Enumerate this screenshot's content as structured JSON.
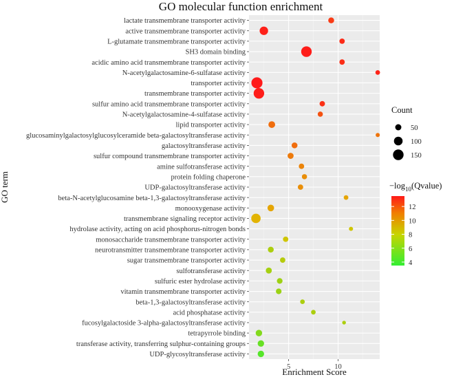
{
  "chart_data": {
    "type": "scatter",
    "title": "GO molecular function enrichment",
    "xlabel": "Enrichment Score",
    "ylabel": "GO term",
    "xlim": [
      1.0,
      14.2
    ],
    "xticks": [
      5,
      10
    ],
    "grid": true,
    "legend_position": "right",
    "size_legend": {
      "title": "Count",
      "values": [
        50,
        100,
        150
      ]
    },
    "color_legend": {
      "title_prefix": "−log",
      "title_sub": "10",
      "title_suffix": "(Qvalue)",
      "range": [
        3.5,
        13.5
      ],
      "ticks": [
        4,
        6,
        8,
        10,
        12
      ],
      "low_color": "#33ee33",
      "mid_color": "#e0c000",
      "high_color": "#ff1a1a"
    },
    "points": [
      {
        "term": "lactate transmembrane transporter activity",
        "x": 9.3,
        "count": 45,
        "q": 12.5
      },
      {
        "term": "active transmembrane transporter activity",
        "x": 2.5,
        "count": 95,
        "q": 13.3
      },
      {
        "term": "L-glutamate transmembrane transporter activity",
        "x": 10.4,
        "count": 38,
        "q": 13.0
      },
      {
        "term": "SH3 domain binding",
        "x": 6.8,
        "count": 150,
        "q": 13.4
      },
      {
        "term": "acidic amino acid transmembrane transporter activity",
        "x": 10.4,
        "count": 38,
        "q": 12.9
      },
      {
        "term": "N-acetylgalactosamine-6-sulfatase activity",
        "x": 14.0,
        "count": 28,
        "q": 13.2
      },
      {
        "term": "transporter activity",
        "x": 1.8,
        "count": 165,
        "q": 13.5
      },
      {
        "term": "transmembrane transporter activity",
        "x": 2.0,
        "count": 150,
        "q": 13.4
      },
      {
        "term": "sulfur amino acid transmembrane transporter activity",
        "x": 8.4,
        "count": 38,
        "q": 12.8
      },
      {
        "term": "N-acetylgalactosamine-4-sulfatase activity",
        "x": 8.2,
        "count": 35,
        "q": 11.8
      },
      {
        "term": "lipid transporter activity",
        "x": 3.3,
        "count": 60,
        "q": 11.0
      },
      {
        "term": "glucosaminylgalactosylglucosylceramide beta-galactosyltransferase activity",
        "x": 14.0,
        "count": 22,
        "q": 10.8
      },
      {
        "term": "galactosyltransferase activity",
        "x": 5.6,
        "count": 45,
        "q": 11.0
      },
      {
        "term": "sulfur compound transmembrane transporter activity",
        "x": 5.2,
        "count": 48,
        "q": 10.6
      },
      {
        "term": "amine sulfotransferase activity",
        "x": 6.3,
        "count": 38,
        "q": 10.3
      },
      {
        "term": "protein folding chaperone",
        "x": 6.6,
        "count": 35,
        "q": 10.0
      },
      {
        "term": "UDP-galactosyltransferase activity",
        "x": 6.2,
        "count": 38,
        "q": 10.0
      },
      {
        "term": "beta-N-acetylglucosamine beta-1,3-galactosyltransferase activity",
        "x": 10.8,
        "count": 28,
        "q": 9.3
      },
      {
        "term": "monooxygenase activity",
        "x": 3.2,
        "count": 58,
        "q": 9.3
      },
      {
        "term": "transmembrane signaling receptor activity",
        "x": 1.7,
        "count": 118,
        "q": 8.9
      },
      {
        "term": "hydrolase activity, acting on acid phosphorus-nitrogen bonds",
        "x": 11.3,
        "count": 22,
        "q": 8.0
      },
      {
        "term": "monosaccharide transmembrane transporter activity",
        "x": 4.7,
        "count": 38,
        "q": 8.0
      },
      {
        "term": "neurotransmitter transmembrane transporter activity",
        "x": 3.2,
        "count": 45,
        "q": 7.0
      },
      {
        "term": "sugar transmembrane transporter activity",
        "x": 4.4,
        "count": 38,
        "q": 7.3
      },
      {
        "term": "sulfotransferase activity",
        "x": 3.0,
        "count": 48,
        "q": 6.8
      },
      {
        "term": "sulfuric ester hydrolase activity",
        "x": 4.1,
        "count": 42,
        "q": 6.6
      },
      {
        "term": "vitamin transmembrane transporter activity",
        "x": 4.0,
        "count": 42,
        "q": 6.5
      },
      {
        "term": "beta-1,3-galactosyltransferase activity",
        "x": 6.4,
        "count": 28,
        "q": 7.0
      },
      {
        "term": "acid phosphatase activity",
        "x": 7.5,
        "count": 28,
        "q": 7.0
      },
      {
        "term": "fucosylgalactoside 3-alpha-galactosyltransferase activity",
        "x": 10.6,
        "count": 18,
        "q": 7.0
      },
      {
        "term": "tetrapyrrole binding",
        "x": 2.0,
        "count": 55,
        "q": 5.8
      },
      {
        "term": "transferase activity, transferring sulphur-containing groups",
        "x": 2.2,
        "count": 55,
        "q": 5.0
      },
      {
        "term": "UDP-glycosyltransferase activity",
        "x": 2.2,
        "count": 55,
        "q": 4.5
      }
    ]
  }
}
